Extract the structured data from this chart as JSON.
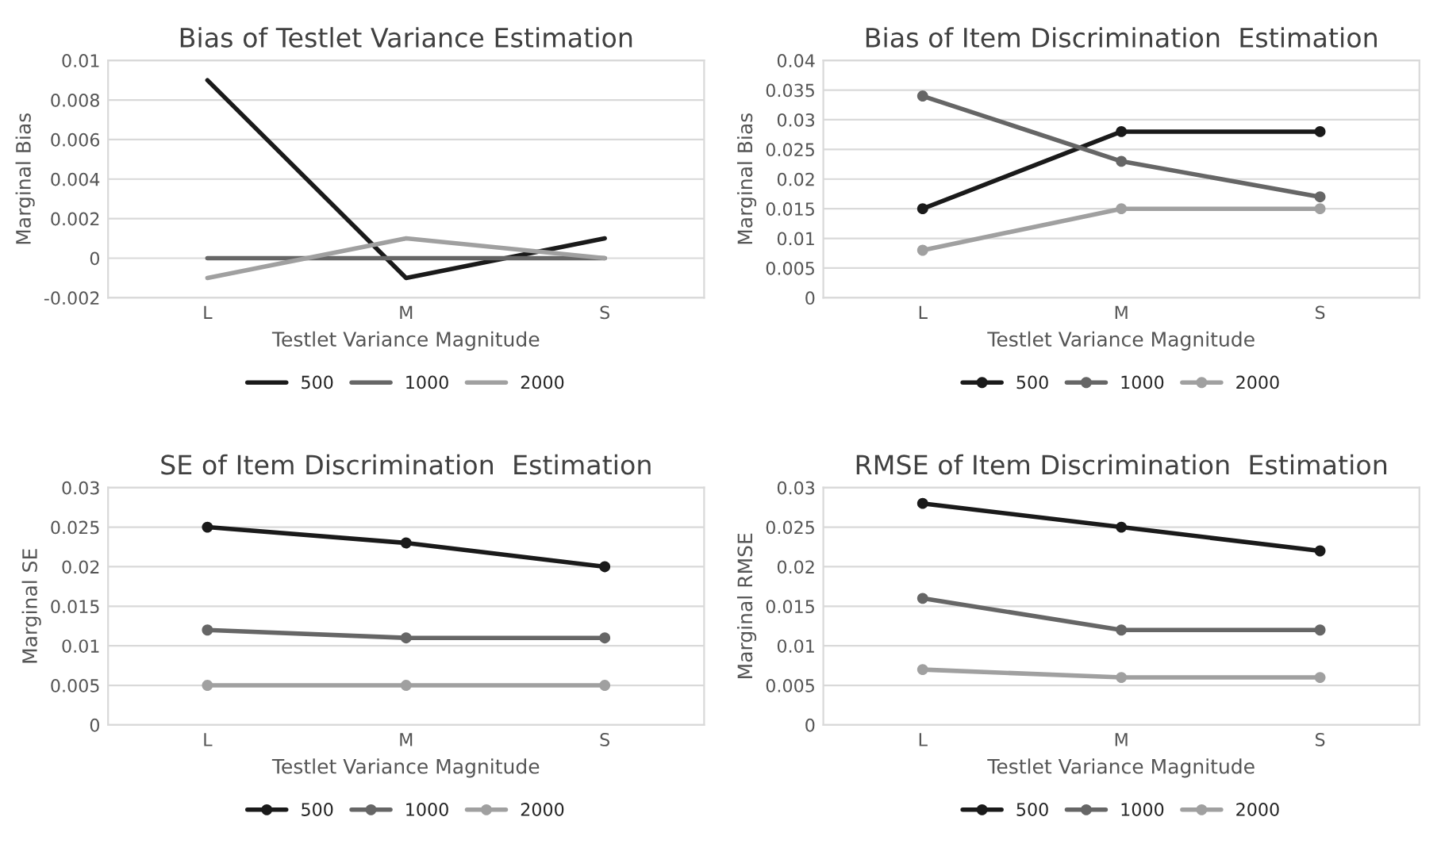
{
  "chart_data": [
    {
      "type": "line",
      "title": "Bias of Testlet Variance Estimation",
      "xlabel": "Testlet Variance Magnitude",
      "ylabel": "Marginal Bias",
      "categories": [
        "L",
        "M",
        "S"
      ],
      "ylim": [
        -0.002,
        0.01
      ],
      "yticks": [
        -0.002,
        0,
        0.002,
        0.004,
        0.006,
        0.008,
        0.01
      ],
      "grid": "y",
      "legend": "bottom",
      "marker": "none",
      "series": [
        {
          "name": "500",
          "color": "#1a1a1a",
          "values": [
            0.009,
            -0.001,
            0.001
          ]
        },
        {
          "name": "1000",
          "color": "#666666",
          "values": [
            0,
            0,
            0
          ]
        },
        {
          "name": "2000",
          "color": "#a0a0a0",
          "values": [
            -0.001,
            0.001,
            0
          ]
        }
      ]
    },
    {
      "type": "line",
      "title": "Bias of Item Discrimination  Estimation",
      "xlabel": "Testlet Variance Magnitude",
      "ylabel": "Marginal Bias",
      "categories": [
        "L",
        "M",
        "S"
      ],
      "ylim": [
        0,
        0.04
      ],
      "yticks": [
        0,
        0.005,
        0.01,
        0.015,
        0.02,
        0.025,
        0.03,
        0.035,
        0.04
      ],
      "grid": "y",
      "legend": "bottom",
      "marker": "circle",
      "series": [
        {
          "name": "500",
          "color": "#1a1a1a",
          "values": [
            0.015,
            0.028,
            0.028
          ]
        },
        {
          "name": "1000",
          "color": "#666666",
          "values": [
            0.034,
            0.023,
            0.017
          ]
        },
        {
          "name": "2000",
          "color": "#a0a0a0",
          "values": [
            0.008,
            0.015,
            0.015
          ]
        }
      ]
    },
    {
      "type": "line",
      "title": "SE of Item Discrimination  Estimation",
      "xlabel": "Testlet Variance Magnitude",
      "ylabel": "Marginal SE",
      "categories": [
        "L",
        "M",
        "S"
      ],
      "ylim": [
        0,
        0.03
      ],
      "yticks": [
        0,
        0.005,
        0.01,
        0.015,
        0.02,
        0.025,
        0.03
      ],
      "grid": "y",
      "legend": "bottom",
      "marker": "circle",
      "series": [
        {
          "name": "500",
          "color": "#1a1a1a",
          "values": [
            0.025,
            0.023,
            0.02
          ]
        },
        {
          "name": "1000",
          "color": "#666666",
          "values": [
            0.012,
            0.011,
            0.011
          ]
        },
        {
          "name": "2000",
          "color": "#a0a0a0",
          "values": [
            0.005,
            0.005,
            0.005
          ]
        }
      ]
    },
    {
      "type": "line",
      "title": "RMSE of Item Discrimination  Estimation",
      "xlabel": "Testlet Variance Magnitude",
      "ylabel": "Marginal RMSE",
      "categories": [
        "L",
        "M",
        "S"
      ],
      "ylim": [
        0,
        0.03
      ],
      "yticks": [
        0,
        0.005,
        0.01,
        0.015,
        0.02,
        0.025,
        0.03
      ],
      "grid": "y",
      "legend": "bottom",
      "marker": "circle",
      "series": [
        {
          "name": "500",
          "color": "#1a1a1a",
          "values": [
            0.028,
            0.025,
            0.022
          ]
        },
        {
          "name": "1000",
          "color": "#666666",
          "values": [
            0.016,
            0.012,
            0.012
          ]
        },
        {
          "name": "2000",
          "color": "#a0a0a0",
          "values": [
            0.007,
            0.006,
            0.006
          ]
        }
      ]
    }
  ]
}
